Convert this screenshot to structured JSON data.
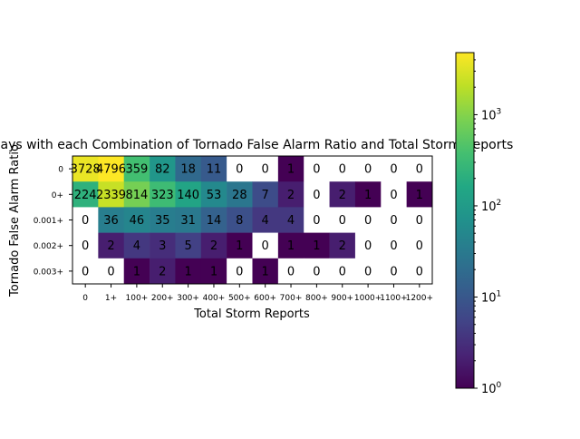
{
  "chart_data": {
    "type": "heatmap",
    "title": "Days with each Combination of Tornado False Alarm Ratio and Total Storm Reports",
    "xlabel": "Total Storm Reports",
    "ylabel": "Tornado False Alarm Ratio",
    "x_categories": [
      "0",
      "1+",
      "100+",
      "200+",
      "300+",
      "400+",
      "500+",
      "600+",
      "700+",
      "800+",
      "900+",
      "1000+",
      "1100+",
      "1200+"
    ],
    "y_categories": [
      "0",
      "0+",
      "0.001+",
      "0.002+",
      "0.003+"
    ],
    "values": [
      [
        3728,
        4796,
        359,
        82,
        18,
        11,
        0,
        0,
        1,
        0,
        0,
        0,
        0,
        0
      ],
      [
        224,
        2339,
        814,
        323,
        140,
        53,
        28,
        7,
        2,
        0,
        2,
        1,
        0,
        1
      ],
      [
        0,
        36,
        46,
        35,
        31,
        14,
        8,
        4,
        4,
        0,
        0,
        0,
        0,
        0
      ],
      [
        0,
        2,
        4,
        3,
        5,
        2,
        1,
        0,
        1,
        1,
        2,
        0,
        0,
        0
      ],
      [
        0,
        0,
        1,
        2,
        1,
        1,
        0,
        1,
        0,
        0,
        0,
        0,
        0,
        0
      ]
    ],
    "colorscale": "viridis",
    "color_scale_type": "log",
    "colorbar_range": [
      1,
      4796
    ],
    "colorbar_ticks": [
      {
        "value": 1,
        "label": "10^0"
      },
      {
        "value": 10,
        "label": "10^1"
      },
      {
        "value": 100,
        "label": "10^2"
      },
      {
        "value": 1000,
        "label": "10^3"
      }
    ],
    "zero_color": "#ffffff",
    "legend": "colorbar-right",
    "grid": false
  }
}
